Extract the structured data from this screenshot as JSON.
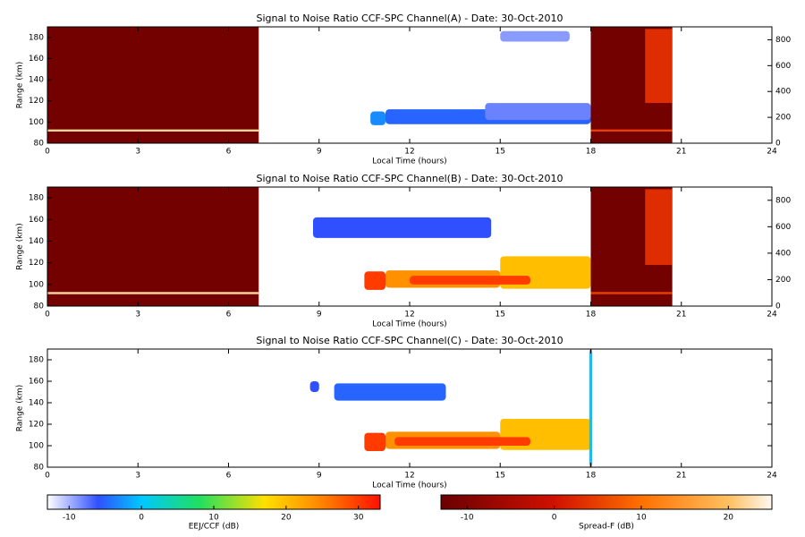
{
  "chart_data": [
    {
      "type": "heatmap",
      "title": "Signal to Noise Ratio CCF-SPC Channel(A) - Date: 30-Oct-2010",
      "xlabel": "Local Time (hours)",
      "ylabel": "Range (km)",
      "xlim": [
        0,
        24
      ],
      "xticks": [
        0,
        3,
        6,
        9,
        12,
        15,
        18,
        21,
        24
      ],
      "ylim": [
        80,
        190
      ],
      "yticks": [
        80,
        100,
        120,
        140,
        160,
        180
      ],
      "y2lim": [
        0,
        900
      ],
      "y2ticks": [
        0,
        200,
        400,
        600,
        800
      ],
      "spread_f_cells": [
        {
          "x": [
            0,
            7
          ],
          "y": [
            80,
            190
          ],
          "value": -12
        },
        {
          "x": [
            0,
            7
          ],
          "y": [
            91,
            93
          ],
          "value": 22
        },
        {
          "x": [
            18,
            20.7
          ],
          "y": [
            80,
            190
          ],
          "value": -12
        },
        {
          "x": [
            18,
            20.7
          ],
          "y": [
            91,
            93
          ],
          "value": 5
        },
        {
          "x": [
            19.8,
            20.7
          ],
          "y": [
            118,
            188
          ],
          "value": 3
        }
      ],
      "eej_cells": [
        {
          "x": [
            10.7,
            11.2
          ],
          "y": [
            97,
            110
          ],
          "value": -3
        },
        {
          "x": [
            11.2,
            18
          ],
          "y": [
            98,
            112
          ],
          "value": -5
        },
        {
          "x": [
            14.5,
            18
          ],
          "y": [
            102,
            118
          ],
          "value": -8
        },
        {
          "x": [
            15,
            17.3
          ],
          "y": [
            176,
            186
          ],
          "value": -9
        }
      ]
    },
    {
      "type": "heatmap",
      "title": "Signal to Noise Ratio CCF-SPC Channel(B) - Date: 30-Oct-2010",
      "xlabel": "Local Time (hours)",
      "ylabel": "Range (km)",
      "xlim": [
        0,
        24
      ],
      "xticks": [
        0,
        3,
        6,
        9,
        12,
        15,
        18,
        21,
        24
      ],
      "ylim": [
        80,
        190
      ],
      "yticks": [
        80,
        100,
        120,
        140,
        160,
        180
      ],
      "y2lim": [
        0,
        900
      ],
      "y2ticks": [
        0,
        200,
        400,
        600,
        800
      ],
      "spread_f_cells": [
        {
          "x": [
            0,
            7
          ],
          "y": [
            80,
            190
          ],
          "value": -12
        },
        {
          "x": [
            0,
            7
          ],
          "y": [
            91,
            93
          ],
          "value": 22
        },
        {
          "x": [
            18,
            20.7
          ],
          "y": [
            80,
            190
          ],
          "value": -12
        },
        {
          "x": [
            18,
            20.7
          ],
          "y": [
            91,
            93
          ],
          "value": 5
        },
        {
          "x": [
            19.8,
            20.7
          ],
          "y": [
            118,
            188
          ],
          "value": 3
        }
      ],
      "eej_cells": [
        {
          "x": [
            8.8,
            14.7
          ],
          "y": [
            143,
            162
          ],
          "value": -6
        },
        {
          "x": [
            15,
            18
          ],
          "y": [
            96,
            126
          ],
          "value": 20
        },
        {
          "x": [
            11.2,
            15
          ],
          "y": [
            97,
            113
          ],
          "value": 24
        },
        {
          "x": [
            10.5,
            11.2
          ],
          "y": [
            95,
            112
          ],
          "value": 30
        },
        {
          "x": [
            12,
            16
          ],
          "y": [
            100,
            108
          ],
          "value": 30
        }
      ]
    },
    {
      "type": "heatmap",
      "title": "Signal to Noise Ratio CCF-SPC Channel(C) - Date: 30-Oct-2010",
      "xlabel": "Local Time (hours)",
      "ylabel": "Range (km)",
      "xlim": [
        0,
        24
      ],
      "xticks": [
        0,
        3,
        6,
        9,
        12,
        15,
        18,
        21,
        24
      ],
      "ylim": [
        80,
        190
      ],
      "yticks": [
        80,
        100,
        120,
        140,
        160,
        180
      ],
      "spread_f_cells": [],
      "eej_cells": [
        {
          "x": [
            8.7,
            9
          ],
          "y": [
            150,
            160
          ],
          "value": -6
        },
        {
          "x": [
            9.5,
            13.2
          ],
          "y": [
            142,
            158
          ],
          "value": -5
        },
        {
          "x": [
            15,
            18
          ],
          "y": [
            96,
            125
          ],
          "value": 20
        },
        {
          "x": [
            11.2,
            15
          ],
          "y": [
            97,
            113
          ],
          "value": 24
        },
        {
          "x": [
            10.5,
            11.2
          ],
          "y": [
            95,
            112
          ],
          "value": 30
        },
        {
          "x": [
            11.5,
            16
          ],
          "y": [
            100,
            108
          ],
          "value": 30
        },
        {
          "x": [
            17.95,
            18.05
          ],
          "y": [
            80,
            190
          ],
          "value": 0
        }
      ]
    }
  ],
  "colorbars": [
    {
      "label": "EEJ/CCF (dB)",
      "lim": [
        -13,
        33
      ],
      "ticks": [
        -10,
        0,
        10,
        20,
        30
      ],
      "stops": [
        [
          -13,
          "#ffffff"
        ],
        [
          -6,
          "#3050ff"
        ],
        [
          0,
          "#00c8ff"
        ],
        [
          8,
          "#20e060"
        ],
        [
          17,
          "#ffe000"
        ],
        [
          24,
          "#ff9000"
        ],
        [
          33,
          "#ff1000"
        ]
      ]
    },
    {
      "label": "Spread-F (dB)",
      "lim": [
        -13,
        25
      ],
      "ticks": [
        -10,
        0,
        10,
        20
      ],
      "stops": [
        [
          -13,
          "#6a0000"
        ],
        [
          0,
          "#d01000"
        ],
        [
          10,
          "#ff7000"
        ],
        [
          20,
          "#ffc060"
        ],
        [
          25,
          "#fff8f0"
        ]
      ]
    }
  ]
}
